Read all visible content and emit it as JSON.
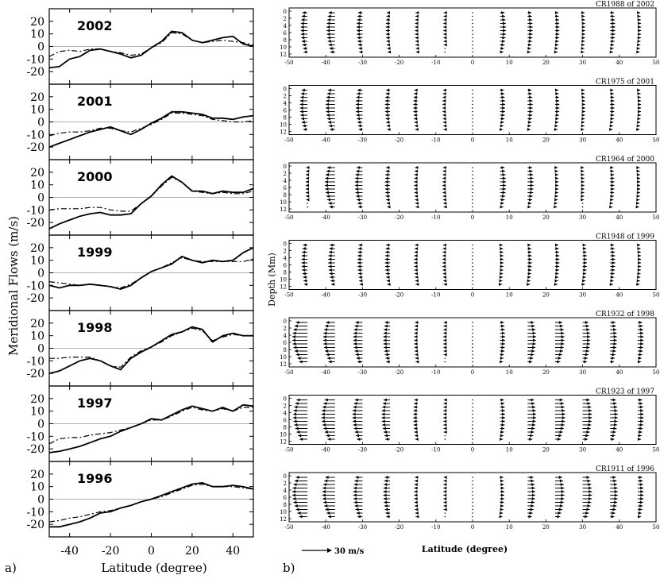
{
  "figure": {
    "panel_a_label": "a)",
    "panel_b_label": "b)",
    "left_ylabel": "Meridional Flows (m/s)",
    "left_xlabel": "Latitude (degree)",
    "right_ylabel": "Depth (Mm)",
    "right_xlabel": "Latitude (degree)",
    "scale_label": "30 m/s"
  },
  "chart_data": [
    {
      "type": "line",
      "panel": "a",
      "xlim": [
        -50,
        50
      ],
      "ylim": [
        -30,
        30
      ],
      "x_ticks": [
        -40,
        -20,
        0,
        20,
        40
      ],
      "y_ticks": [
        -20,
        -10,
        0,
        10,
        20
      ],
      "zero_line": true,
      "xlabel": "Latitude (degree)",
      "ylabel": "Meridional Flows (m/s)",
      "x": [
        -50,
        -45,
        -40,
        -35,
        -30,
        -25,
        -20,
        -15,
        -10,
        -5,
        0,
        5,
        10,
        15,
        20,
        25,
        30,
        35,
        40,
        45,
        50
      ],
      "panels": [
        {
          "label": "2002",
          "series": [
            {
              "style": "solid",
              "values": [
                -17,
                -16,
                -10,
                -8,
                -3,
                -2,
                -4,
                -6,
                -9,
                -7,
                -1,
                4,
                12,
                11,
                5,
                3,
                5,
                7,
                8,
                2,
                0
              ]
            },
            {
              "style": "dashdot",
              "values": [
                -8,
                -4,
                -3,
                -4,
                -2,
                -2,
                -4,
                -5,
                -7,
                -6,
                -1,
                3,
                11,
                10,
                5,
                3,
                4,
                5,
                4,
                3,
                1
              ]
            }
          ]
        },
        {
          "label": "2001",
          "series": [
            {
              "style": "solid",
              "values": [
                -20,
                -17,
                -14,
                -11,
                -8,
                -6,
                -4,
                -7,
                -10,
                -6,
                -1,
                3,
                8,
                8,
                7,
                6,
                3,
                3,
                2,
                4,
                5
              ]
            },
            {
              "style": "dashdot",
              "values": [
                -11,
                -9,
                -8,
                -8,
                -7,
                -5,
                -5,
                -7,
                -8,
                -5,
                -2,
                2,
                7,
                7,
                6,
                5,
                2,
                1,
                0,
                0,
                1
              ]
            }
          ]
        },
        {
          "label": "2000",
          "series": [
            {
              "style": "solid",
              "values": [
                -25,
                -21,
                -18,
                -15,
                -13,
                -12,
                -14,
                -14,
                -13,
                -5,
                1,
                10,
                17,
                12,
                5,
                5,
                3,
                5,
                4,
                4,
                7
              ]
            },
            {
              "style": "dashdot",
              "values": [
                -10,
                -9,
                -9,
                -9,
                -8,
                -8,
                -10,
                -11,
                -11,
                -5,
                1,
                9,
                16,
                12,
                5,
                4,
                3,
                4,
                3,
                3,
                5
              ]
            }
          ]
        },
        {
          "label": "1999",
          "series": [
            {
              "style": "solid",
              "values": [
                -10,
                -12,
                -10,
                -10,
                -9,
                -10,
                -11,
                -13,
                -10,
                -4,
                1,
                4,
                7,
                13,
                10,
                8,
                10,
                9,
                10,
                16,
                20
              ]
            },
            {
              "style": "dashdot",
              "values": [
                -7,
                -8,
                -9,
                -10,
                -9,
                -10,
                -11,
                -12,
                -9,
                -4,
                1,
                4,
                8,
                12,
                10,
                9,
                9,
                9,
                9,
                9,
                11
              ]
            }
          ]
        },
        {
          "label": "1998",
          "series": [
            {
              "style": "solid",
              "values": [
                -20,
                -18,
                -14,
                -10,
                -8,
                -10,
                -14,
                -17,
                -8,
                -3,
                1,
                6,
                11,
                13,
                17,
                15,
                5,
                10,
                12,
                10,
                10
              ]
            },
            {
              "style": "dashdot",
              "values": [
                -8,
                -8,
                -7,
                -7,
                -7,
                -10,
                -14,
                -15,
                -7,
                -2,
                1,
                5,
                10,
                13,
                16,
                14,
                6,
                9,
                11,
                10,
                10
              ]
            }
          ]
        },
        {
          "label": "1997",
          "series": [
            {
              "style": "solid",
              "values": [
                -23,
                -22,
                -20,
                -18,
                -15,
                -12,
                -10,
                -6,
                -3,
                0,
                4,
                3,
                7,
                11,
                14,
                12,
                10,
                13,
                10,
                15,
                14
              ]
            },
            {
              "style": "dashdot",
              "values": [
                -16,
                -12,
                -11,
                -11,
                -9,
                -8,
                -7,
                -5,
                -3,
                0,
                3,
                3,
                6,
                10,
                13,
                11,
                10,
                12,
                10,
                13,
                13
              ]
            }
          ]
        },
        {
          "label": "1996",
          "series": [
            {
              "style": "solid",
              "values": [
                -22,
                -22,
                -20,
                -18,
                -15,
                -11,
                -10,
                -7,
                -5,
                -2,
                0,
                3,
                6,
                9,
                12,
                13,
                10,
                10,
                11,
                10,
                8
              ]
            },
            {
              "style": "dashdot",
              "values": [
                -18,
                -17,
                -15,
                -14,
                -12,
                -10,
                -9,
                -7,
                -5,
                -2,
                0,
                2,
                5,
                8,
                11,
                12,
                10,
                10,
                10,
                9,
                8
              ]
            }
          ]
        }
      ]
    },
    {
      "type": "vector_field",
      "panel": "b",
      "xlim": [
        -50,
        50
      ],
      "ylim": [
        12,
        0
      ],
      "x_ticks": [
        -50,
        -40,
        -30,
        -20,
        -10,
        0,
        10,
        20,
        30,
        40,
        50
      ],
      "y_ticks": [
        0,
        2,
        4,
        6,
        8,
        10,
        12
      ],
      "xlabel": "Latitude (degree)",
      "ylabel": "Depth (Mm)",
      "scale_arrow_ms": 30,
      "columns_lat": [
        -45,
        -37.5,
        -30,
        -22.5,
        -15,
        -7.5,
        0,
        7.5,
        15,
        22.5,
        30,
        37.5,
        45
      ],
      "depths": [
        0,
        1,
        2,
        3,
        4,
        5,
        6,
        7,
        8,
        9,
        10,
        11
      ],
      "panels": [
        {
          "label": "CR1988 of 2002",
          "column_speed_ms": [
            -8,
            -10,
            -7,
            -5,
            -3,
            -2,
            0,
            7,
            6,
            5,
            3,
            6,
            4
          ]
        },
        {
          "label": "CR1975 of 2001",
          "column_speed_ms": [
            -9,
            -11,
            -8,
            -6,
            -5,
            -3,
            0,
            6,
            6,
            5,
            3,
            5,
            4
          ]
        },
        {
          "label": "CR1964 of 2000",
          "column_speed_ms": [
            -2,
            -12,
            -9,
            -6,
            -4,
            -3,
            0,
            7,
            7,
            4,
            2,
            5,
            3
          ]
        },
        {
          "label": "CR1948 of 1999",
          "column_speed_ms": [
            -7,
            -8,
            -6,
            -6,
            -4,
            -3,
            0,
            4,
            5,
            5,
            5,
            6,
            4
          ]
        },
        {
          "label": "CR1932 of 1998",
          "column_speed_ms": [
            -18,
            -14,
            -11,
            -8,
            -4,
            -2,
            0,
            6,
            10,
            11,
            9,
            8,
            7
          ]
        },
        {
          "label": "CR1923 of 1997",
          "column_speed_ms": [
            -17,
            -16,
            -12,
            -10,
            -5,
            -2,
            0,
            6,
            10,
            12,
            11,
            9,
            7
          ]
        },
        {
          "label": "CR1911 of 1996",
          "column_speed_ms": [
            -18,
            -15,
            -11,
            -8,
            -4,
            -2,
            0,
            5,
            9,
            11,
            11,
            9,
            7
          ]
        }
      ]
    }
  ]
}
